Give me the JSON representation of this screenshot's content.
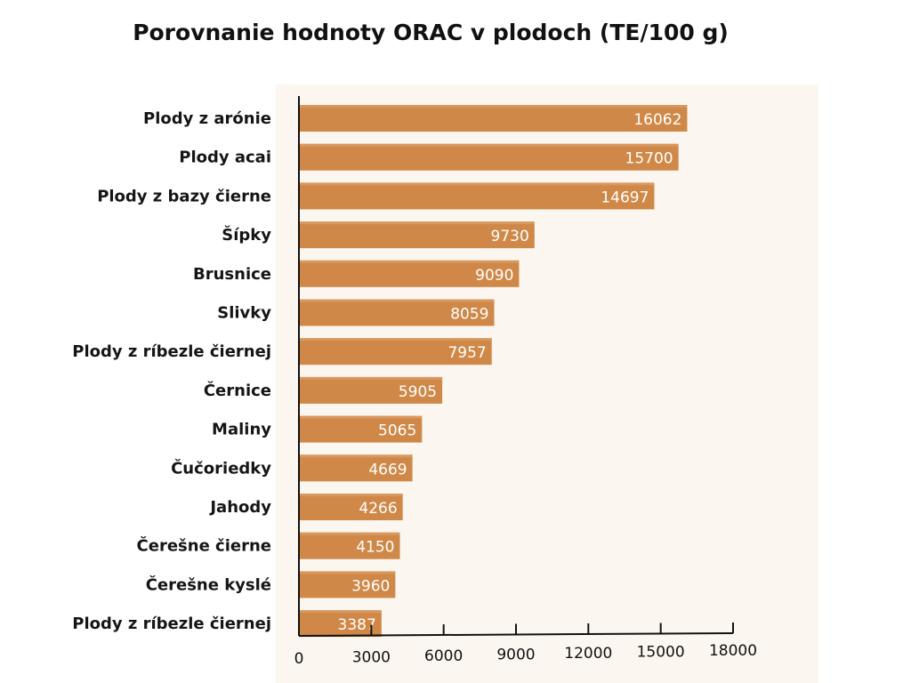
{
  "chart_data": {
    "type": "bar",
    "orientation": "horizontal",
    "title": "Porovnanie hodnoty ORAC v plodoch (TE/100 g)",
    "categories": [
      "Plody z arónie",
      "Plody acai",
      "Plody z bazy čierne",
      "Šípky",
      "Brusnice",
      "Slivky",
      "Plody z ríbezle čiernej",
      "Černice",
      "Maliny",
      "Čučoriedky",
      "Jahody",
      "Čerešne čierne",
      "Čerešne kyslé",
      "Plody z ríbezle čiernej"
    ],
    "values": [
      16062,
      15700,
      14697,
      9730,
      9090,
      8059,
      7957,
      5905,
      5065,
      4669,
      4266,
      4150,
      3960,
      3387
    ],
    "data_labels": [
      "16062",
      "15700",
      "14697",
      "9730",
      "9090",
      "8059",
      "7957",
      "5905",
      "5065",
      "4669",
      "4266",
      "4150",
      "3960",
      "3387"
    ],
    "xlim": [
      0,
      18000
    ],
    "x_ticks": [
      0,
      3000,
      6000,
      9000,
      12000,
      15000,
      18000
    ],
    "x_tick_labels": [
      "0",
      "3000",
      "6000",
      "9000",
      "12000",
      "15000",
      "18000"
    ],
    "xlabel": "",
    "ylabel": "",
    "grid": false,
    "legend": "none",
    "colors": {
      "bar": "#d08848",
      "bar_highlight": "#dda06a",
      "axis": "#111111",
      "label_text": "#151515",
      "value_text": "#ffffff",
      "plot_background": "#fbf7f0"
    }
  }
}
